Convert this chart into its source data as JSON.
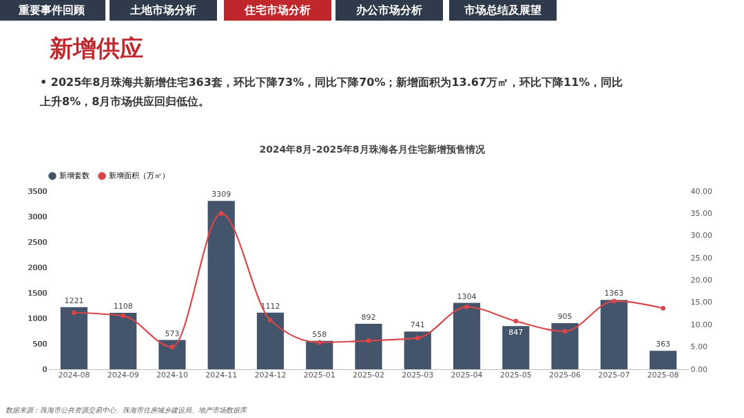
{
  "chart_data": {
    "type": "bar",
    "title": "2024年8月-2025年8月珠海各月住宅新增预售情况",
    "categories": [
      "2024-08",
      "2024-09",
      "2024-10",
      "2024-11",
      "2024-12",
      "2025-01",
      "2025-02",
      "2025-03",
      "2025-04",
      "2025-05",
      "2025-06",
      "2025-07",
      "2025-08"
    ],
    "series": [
      {
        "name": "新增套数",
        "color": "#44546a",
        "values": [
          1221,
          1108,
          573,
          3309,
          1112,
          558,
          892,
          741,
          1304,
          847,
          905,
          1363,
          363
        ],
        "value_labels": [
          "1221",
          "1108",
          "573",
          "3309",
          "1112",
          "558",
          "892",
          "741",
          "1304",
          "847",
          "905",
          "1363",
          "363"
        ]
      },
      {
        "name": "新增面积（万㎡）",
        "type": "line",
        "axis": "y2",
        "color": "#d9464a",
        "values": [
          12.7,
          12.0,
          5.0,
          35.0,
          11.0,
          6.0,
          6.4,
          7.0,
          14.0,
          10.8,
          8.5,
          15.3,
          13.7
        ]
      }
    ],
    "ylim": [
      0,
      3500
    ],
    "yticks": [
      0,
      500,
      1000,
      1500,
      2000,
      2500,
      3000,
      3500
    ],
    "y2lim": [
      0,
      40
    ],
    "y2ticks": [
      {
        "value": 0,
        "label": "0.00"
      },
      {
        "value": 5,
        "label": "5.00"
      },
      {
        "value": 10,
        "label": "10.00"
      },
      {
        "value": 15,
        "label": "15.00"
      },
      {
        "value": 20,
        "label": "20.00"
      },
      {
        "value": 25,
        "label": "25.00"
      },
      {
        "value": 30,
        "label": "30.00"
      },
      {
        "value": 35,
        "label": "35.00"
      },
      {
        "value": 40,
        "label": "40.00"
      }
    ],
    "marker": "circle",
    "grid": false,
    "legend": "top",
    "annotations": [
      "重要事件回顾",
      "土地市场分析",
      "住宅市场分析",
      "办公市场分析",
      "市场总结及展望",
      "新增供应",
      "• 2025年8月珠海共新增住宅363套，环比下降73%，同比下降70%；新增面积为13.67万㎡，环比下降11%，同比上升8%，8月市场供应回归低位。",
      "数据来源：珠海市公共资源交易中心、珠海市住房城乡建设局、地产市场数据库"
    ]
  }
}
